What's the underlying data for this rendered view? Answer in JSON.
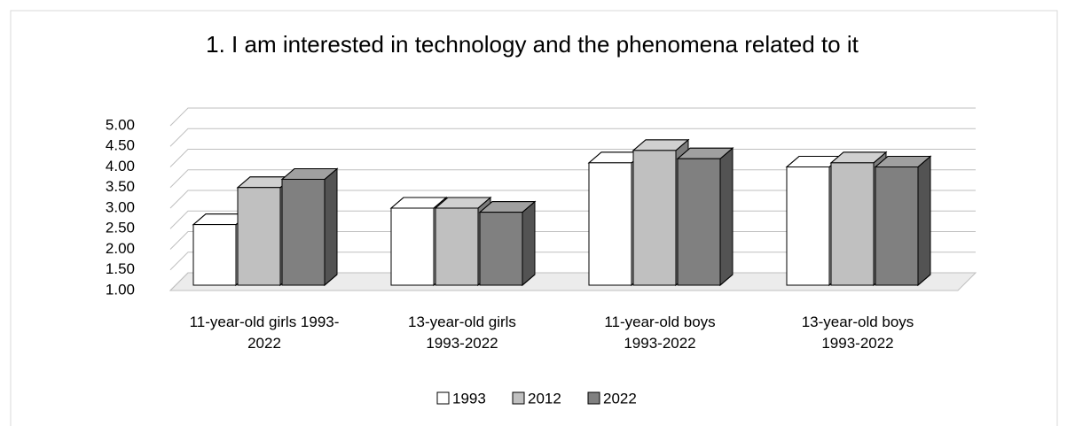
{
  "chart_data": {
    "type": "bar3d",
    "title": "1. I am interested in technology and the phenomena related to it",
    "categories": [
      "11-year-old girls 1993-2022",
      "13-year-old girls 1993-2022",
      "11-year-old boys 1993-2022",
      "13-year-old boys 1993-2022"
    ],
    "series": [
      {
        "name": "1993",
        "color": "#ffffff",
        "values": [
          2.6,
          3.0,
          4.1,
          4.0
        ]
      },
      {
        "name": "2012",
        "color": "#c0c0c0",
        "values": [
          3.5,
          3.0,
          4.4,
          4.1
        ]
      },
      {
        "name": "2022",
        "color": "#808080",
        "values": [
          3.7,
          2.9,
          4.2,
          4.0
        ]
      }
    ],
    "ylim": [
      1,
      5
    ],
    "yticks": [
      {
        "value": 1,
        "label": "1.00"
      },
      {
        "value": 1.5,
        "label": "1.50"
      },
      {
        "value": 2,
        "label": "2.00"
      },
      {
        "value": 2.5,
        "label": "2.50"
      },
      {
        "value": 3,
        "label": "3.00"
      },
      {
        "value": 3.5,
        "label": "3.50"
      },
      {
        "value": 4,
        "label": "4.00"
      },
      {
        "value": 4.5,
        "label": "4.50"
      },
      {
        "value": 5,
        "label": "5.00"
      }
    ],
    "grid": true,
    "legend": "bottom"
  }
}
